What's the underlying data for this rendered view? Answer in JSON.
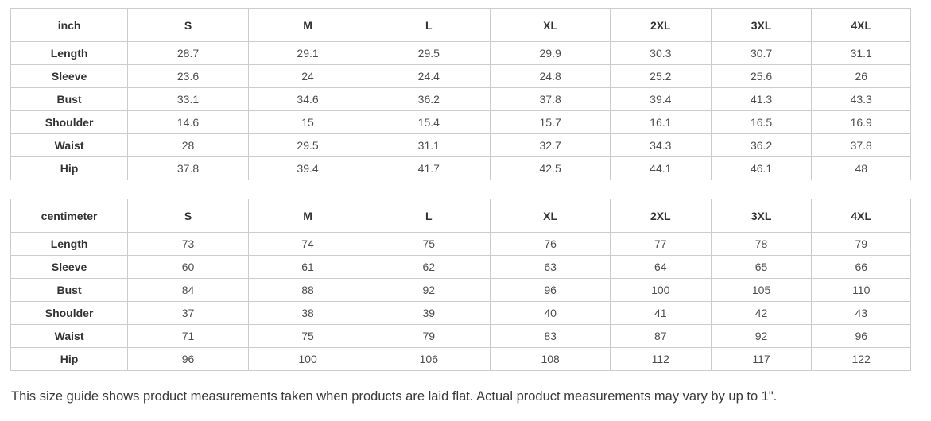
{
  "chart_data": [
    {
      "type": "table",
      "unit_header": "inch",
      "columns": [
        "S",
        "M",
        "L",
        "XL",
        "2XL",
        "3XL",
        "4XL"
      ],
      "rows": [
        {
          "label": "Length",
          "values": [
            "28.7",
            "29.1",
            "29.5",
            "29.9",
            "30.3",
            "30.7",
            "31.1"
          ]
        },
        {
          "label": "Sleeve",
          "values": [
            "23.6",
            "24",
            "24.4",
            "24.8",
            "25.2",
            "25.6",
            "26"
          ]
        },
        {
          "label": "Bust",
          "values": [
            "33.1",
            "34.6",
            "36.2",
            "37.8",
            "39.4",
            "41.3",
            "43.3"
          ]
        },
        {
          "label": "Shoulder",
          "values": [
            "14.6",
            "15",
            "15.4",
            "15.7",
            "16.1",
            "16.5",
            "16.9"
          ]
        },
        {
          "label": "Waist",
          "values": [
            "28",
            "29.5",
            "31.1",
            "32.7",
            "34.3",
            "36.2",
            "37.8"
          ]
        },
        {
          "label": "Hip",
          "values": [
            "37.8",
            "39.4",
            "41.7",
            "42.5",
            "44.1",
            "46.1",
            "48"
          ]
        }
      ]
    },
    {
      "type": "table",
      "unit_header": "centimeter",
      "columns": [
        "S",
        "M",
        "L",
        "XL",
        "2XL",
        "3XL",
        "4XL"
      ],
      "rows": [
        {
          "label": "Length",
          "values": [
            "73",
            "74",
            "75",
            "76",
            "77",
            "78",
            "79"
          ]
        },
        {
          "label": "Sleeve",
          "values": [
            "60",
            "61",
            "62",
            "63",
            "64",
            "65",
            "66"
          ]
        },
        {
          "label": "Bust",
          "values": [
            "84",
            "88",
            "92",
            "96",
            "100",
            "105",
            "110"
          ]
        },
        {
          "label": "Shoulder",
          "values": [
            "37",
            "38",
            "39",
            "40",
            "41",
            "42",
            "43"
          ]
        },
        {
          "label": "Waist",
          "values": [
            "71",
            "75",
            "79",
            "83",
            "87",
            "92",
            "96"
          ]
        },
        {
          "label": "Hip",
          "values": [
            "96",
            "100",
            "106",
            "108",
            "112",
            "117",
            "122"
          ]
        }
      ]
    }
  ],
  "footer_note": "This size guide shows product measurements taken when products are laid flat. Actual product measurements may vary by up to 1\".",
  "colors": {
    "background": "#ffffff",
    "table_border": "#cccccc",
    "header_text": "#333333",
    "cell_text": "#4d4d4d",
    "note_text": "#3a3a3a"
  }
}
